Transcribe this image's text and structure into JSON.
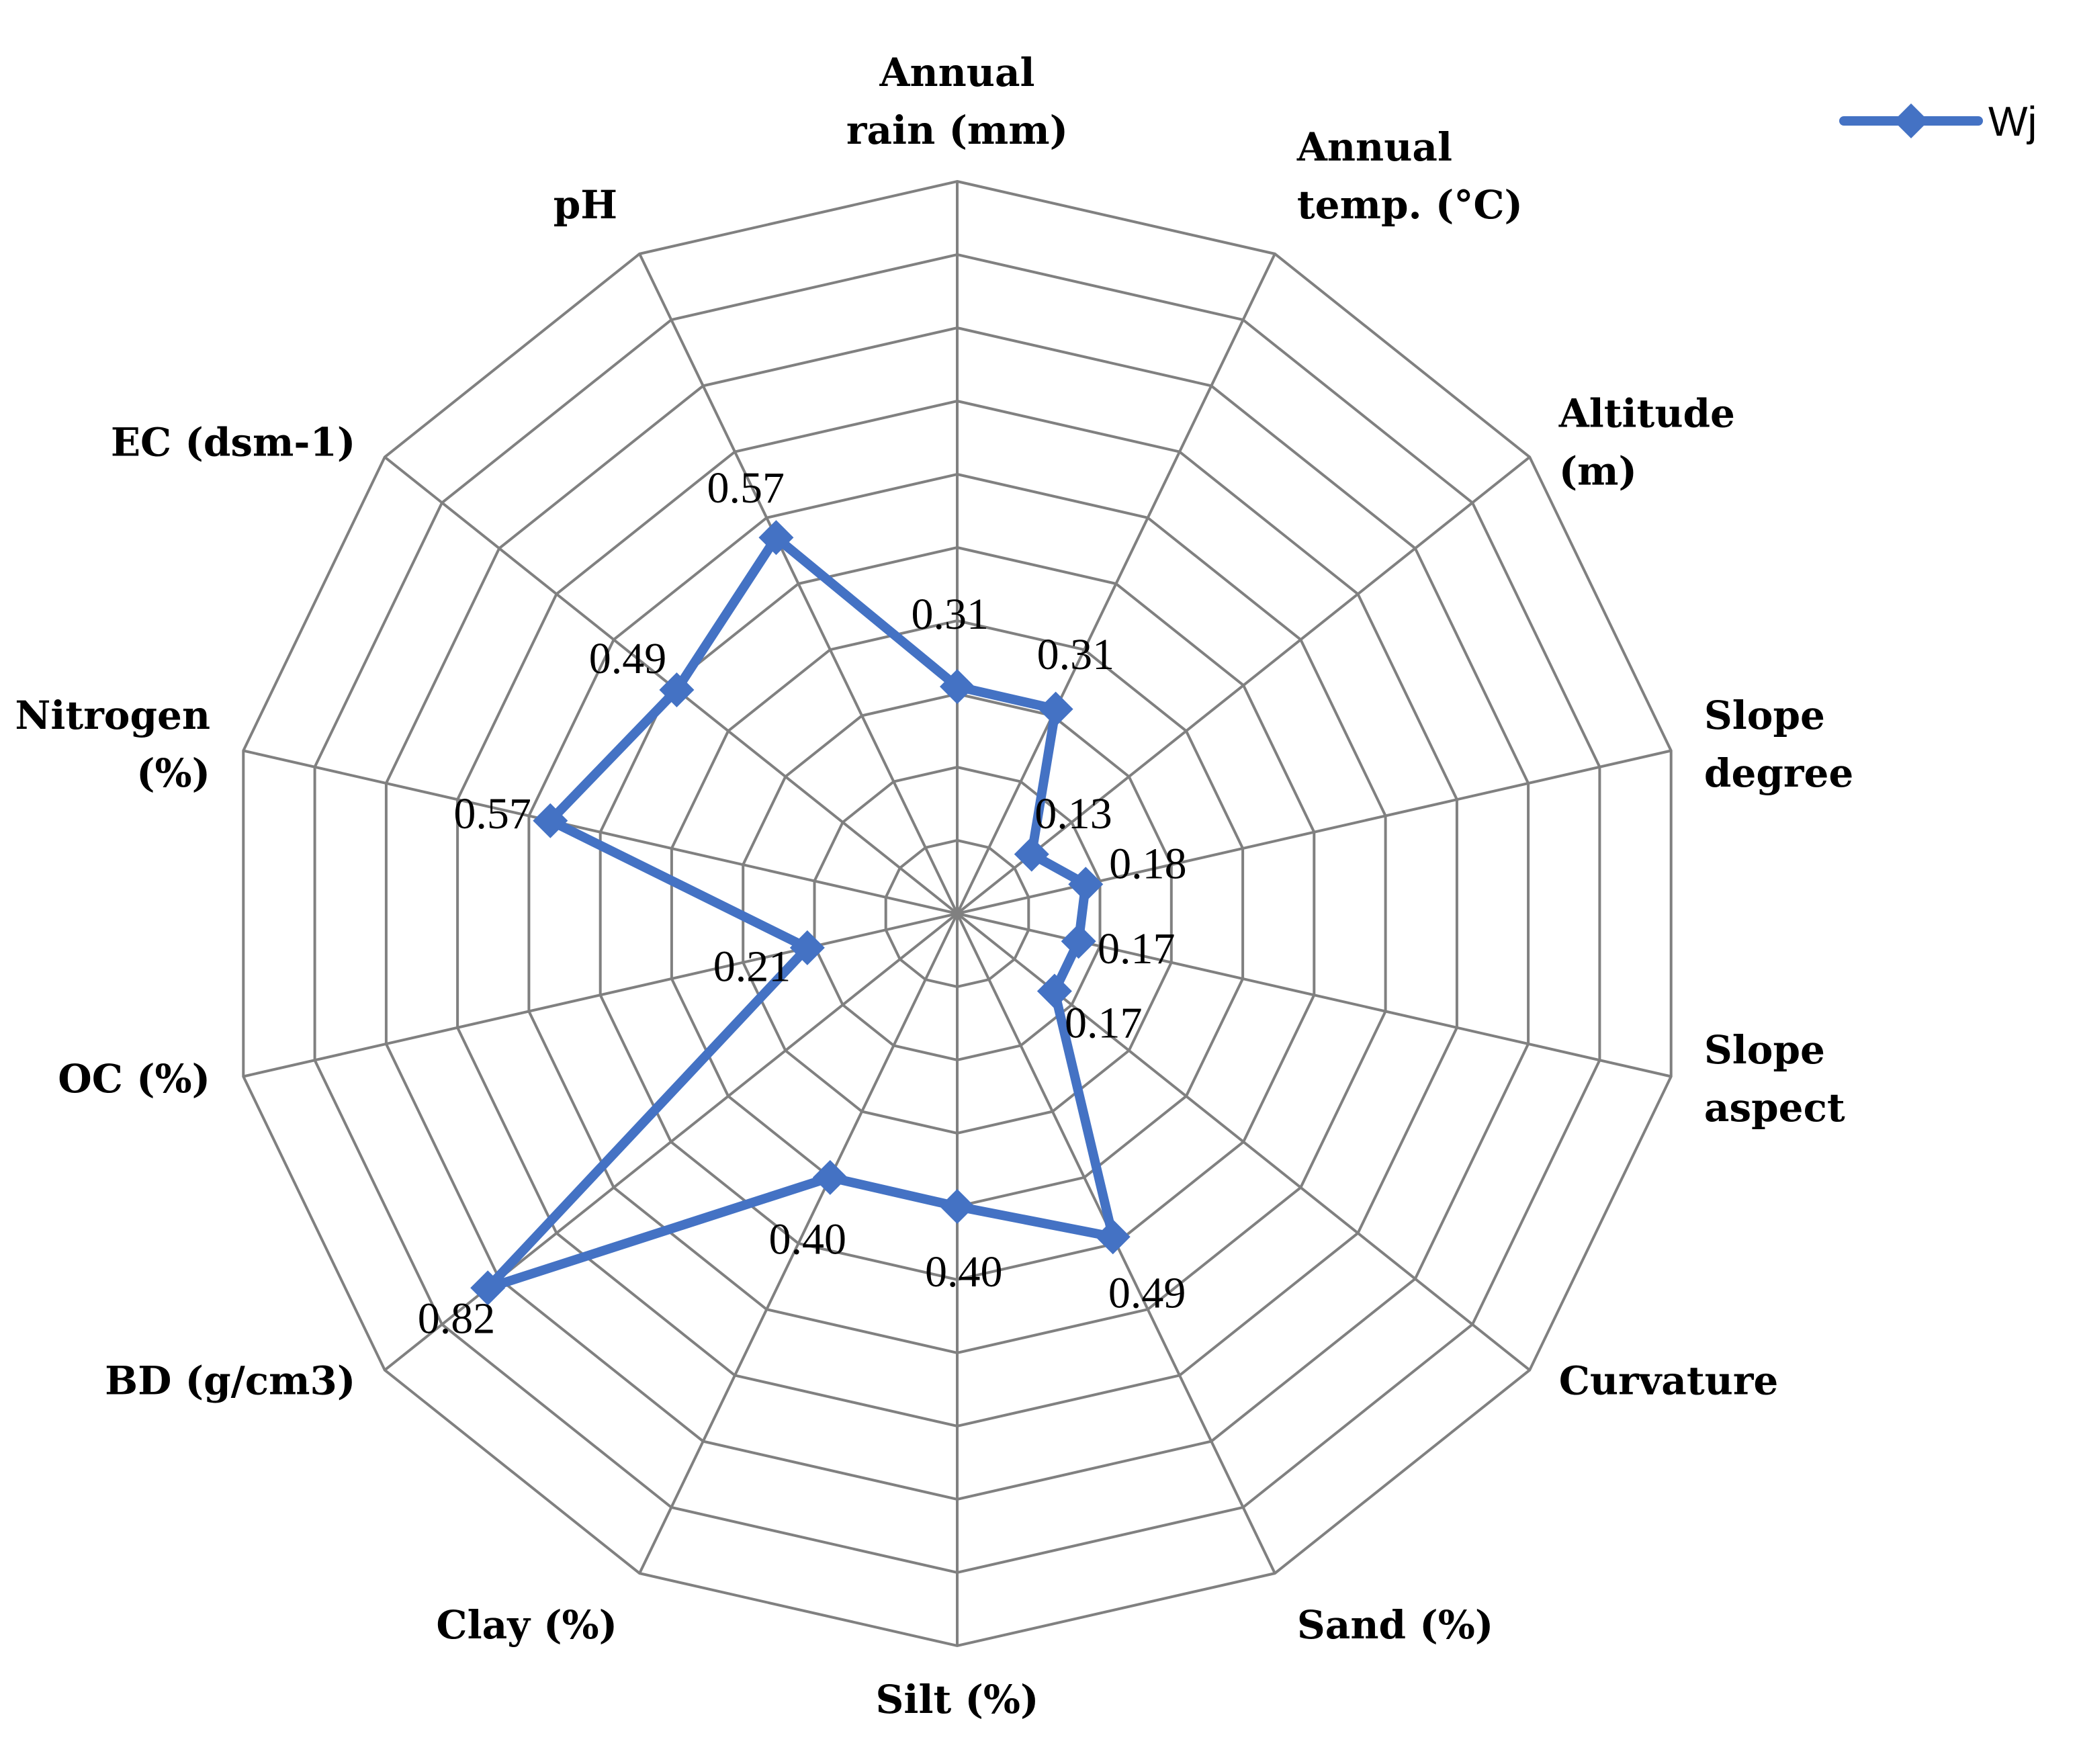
{
  "chart_data": {
    "type": "radar",
    "categories": [
      "Annual rain (mm)",
      "Annual temp. (°C)",
      "Altitude (m)",
      "Slope degree",
      "Slope aspect",
      "Curvature",
      "Sand (%)",
      "Silt (%)",
      "Clay (%)",
      "BD (g/cm3)",
      "OC (%)",
      "Nitrogen (%)",
      "EC (dsm-1)",
      "pH"
    ],
    "category_label_lines": [
      [
        "Annual",
        "rain (mm)"
      ],
      [
        "Annual",
        "temp. (°C)"
      ],
      [
        "Altitude",
        "(m)"
      ],
      [
        "Slope",
        "degree"
      ],
      [
        "Slope",
        "aspect"
      ],
      [
        "Curvature"
      ],
      [
        "Sand (%)"
      ],
      [
        "Silt (%)"
      ],
      [
        "Clay (%)"
      ],
      [
        "BD (g/cm3)"
      ],
      [
        "OC (%)"
      ],
      [
        "Nitrogen",
        "(%)"
      ],
      [
        "EC (dsm-1)"
      ],
      [
        "pH"
      ]
    ],
    "series": [
      {
        "name": "Wj",
        "color": "#4472C4",
        "values": [
          0.31,
          0.31,
          0.13,
          0.18,
          0.17,
          0.17,
          0.49,
          0.4,
          0.4,
          0.82,
          0.21,
          0.57,
          0.49,
          0.57
        ],
        "data_labels": [
          "0.31",
          "0.31",
          "0.13",
          "0.18",
          "0.17",
          "0.17",
          "0.49",
          "0.40",
          "0.40",
          "0.82",
          "0.21",
          "0.57",
          "0.49",
          "0.57"
        ]
      }
    ],
    "rmax": 1.0,
    "grid_step": 0.1,
    "grid": true,
    "legend_position": "top-right",
    "grid_color": "#808080"
  }
}
